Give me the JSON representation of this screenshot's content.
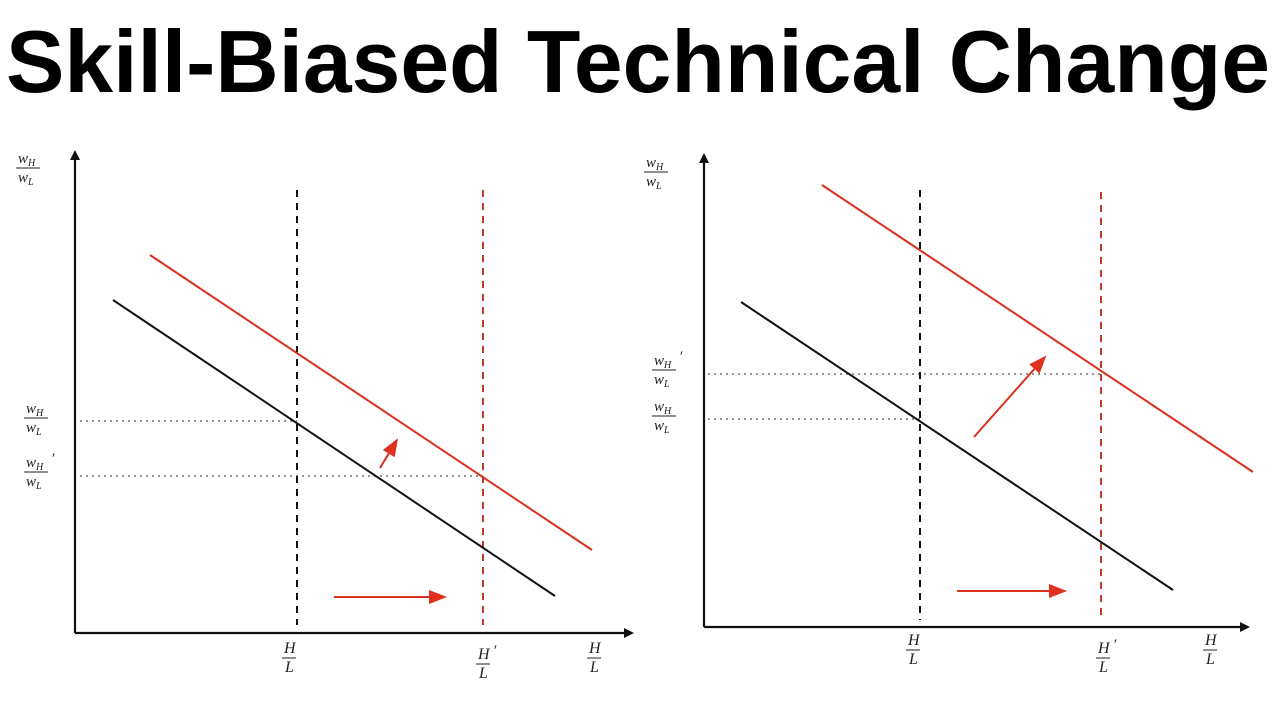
{
  "title": "Skill-Biased Technical Change",
  "panels": [
    {
      "labels": [
        {
          "num": "w",
          "num_sub": "H",
          "den": "w",
          "den_sub": "L"
        },
        {
          "num": "w",
          "num_sub": "H",
          "den": "w",
          "den_sub": "L"
        },
        {
          "num": "w",
          "num_sub": "H",
          "den": "w",
          "den_sub": "L",
          "prime": "′"
        },
        {
          "num": "H",
          "den": "L"
        },
        {
          "num": "H",
          "den": "L",
          "prime": "′"
        },
        {
          "num": "H",
          "den": "L"
        }
      ]
    },
    {
      "labels": [
        {
          "num": "w",
          "num_sub": "H",
          "den": "w",
          "den_sub": "L"
        },
        {
          "num": "w",
          "num_sub": "H",
          "den": "w",
          "den_sub": "L",
          "prime": "′"
        },
        {
          "num": "w",
          "num_sub": "H",
          "den": "w",
          "den_sub": "L"
        },
        {
          "num": "H",
          "den": "L"
        },
        {
          "num": "H",
          "den": "L",
          "prime": "′"
        },
        {
          "num": "H",
          "den": "L"
        }
      ]
    }
  ]
}
